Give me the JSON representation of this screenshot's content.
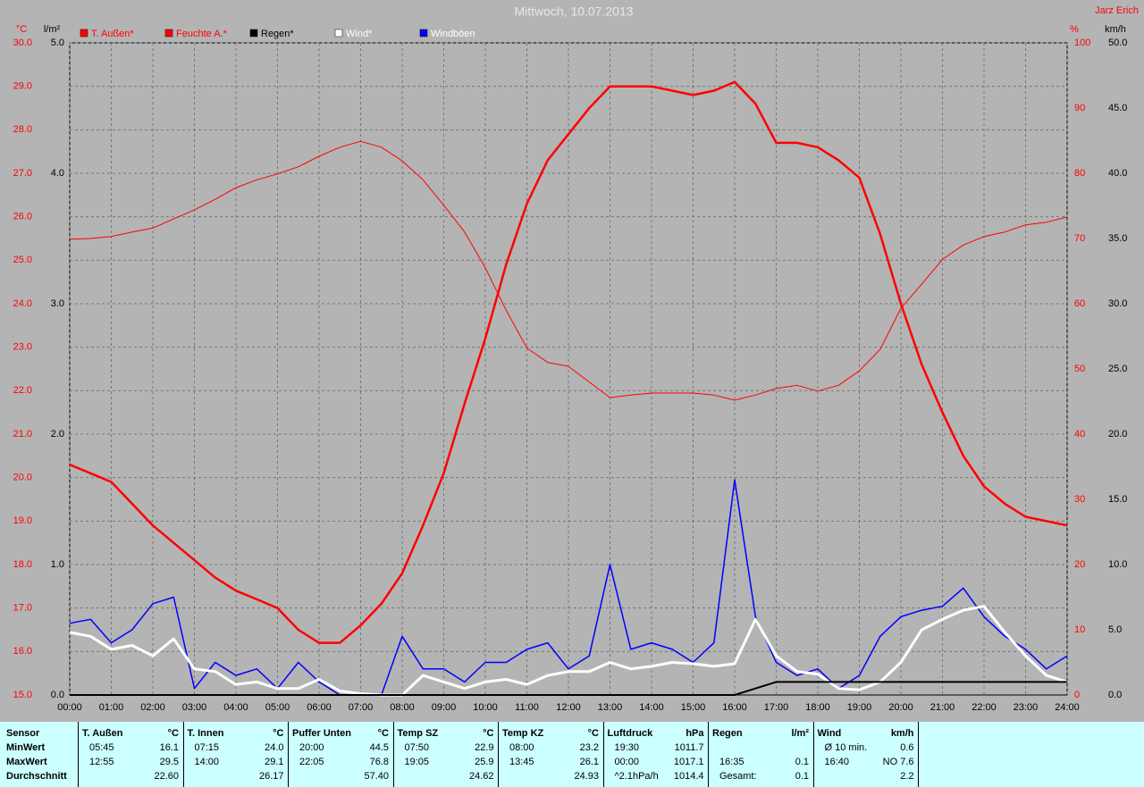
{
  "chart_data": {
    "type": "line",
    "title": "Mittwoch, 10.07.2013",
    "author": "Jarz Erich",
    "y_label": "°C",
    "y2_label": "l/m²",
    "y3_label": "%",
    "y4_label": "km/h",
    "x": [
      0,
      0.5,
      1,
      1.5,
      2,
      2.5,
      3,
      3.5,
      4,
      4.5,
      5,
      5.5,
      6,
      6.5,
      7,
      7.5,
      8,
      8.5,
      9,
      9.5,
      10,
      10.5,
      11,
      11.5,
      12,
      12.5,
      13,
      13.5,
      14,
      14.5,
      15,
      15.5,
      16,
      16.5,
      17,
      17.5,
      18,
      18.5,
      19,
      19.5,
      20,
      20.5,
      21,
      21.5,
      22,
      22.5,
      23,
      23.5,
      24
    ],
    "xlim": [
      0,
      24
    ],
    "xticks": [
      {
        "value": 0,
        "label": "00:00"
      },
      {
        "value": 1,
        "label": "01:00"
      },
      {
        "value": 2,
        "label": "02:00"
      },
      {
        "value": 3,
        "label": "03:00"
      },
      {
        "value": 4,
        "label": "04:00"
      },
      {
        "value": 5,
        "label": "05:00"
      },
      {
        "value": 6,
        "label": "06:00"
      },
      {
        "value": 7,
        "label": "07:00"
      },
      {
        "value": 8,
        "label": "08:00"
      },
      {
        "value": 9,
        "label": "09:00"
      },
      {
        "value": 10,
        "label": "10:00"
      },
      {
        "value": 11,
        "label": "11:00"
      },
      {
        "value": 12,
        "label": "12:00"
      },
      {
        "value": 13,
        "label": "13:00"
      },
      {
        "value": 14,
        "label": "14:00"
      },
      {
        "value": 15,
        "label": "15:00"
      },
      {
        "value": 16,
        "label": "16:00"
      },
      {
        "value": 17,
        "label": "17:00"
      },
      {
        "value": 18,
        "label": "18:00"
      },
      {
        "value": 19,
        "label": "19:00"
      },
      {
        "value": 20,
        "label": "20:00"
      },
      {
        "value": 21,
        "label": "21:00"
      },
      {
        "value": 22,
        "label": "22:00"
      },
      {
        "value": 23,
        "label": "23:00"
      },
      {
        "value": 24,
        "label": "24:00"
      }
    ],
    "ylim": [
      15,
      30
    ],
    "yticks": [
      {
        "value": 15,
        "label": "15.0"
      },
      {
        "value": 16,
        "label": "16.0"
      },
      {
        "value": 17,
        "label": "17.0"
      },
      {
        "value": 18,
        "label": "18.0"
      },
      {
        "value": 19,
        "label": "19.0"
      },
      {
        "value": 20,
        "label": "20.0"
      },
      {
        "value": 21,
        "label": "21.0"
      },
      {
        "value": 22,
        "label": "22.0"
      },
      {
        "value": 23,
        "label": "23.0"
      },
      {
        "value": 24,
        "label": "24.0"
      },
      {
        "value": 25,
        "label": "25.0"
      },
      {
        "value": 26,
        "label": "26.0"
      },
      {
        "value": 27,
        "label": "27.0"
      },
      {
        "value": 28,
        "label": "28.0"
      },
      {
        "value": 29,
        "label": "29.0"
      },
      {
        "value": 30,
        "label": "30.0"
      }
    ],
    "y2lim": [
      0,
      5
    ],
    "y2ticks": [
      {
        "value": 0,
        "label": "0.0"
      },
      {
        "value": 1,
        "label": "1.0"
      },
      {
        "value": 2,
        "label": "2.0"
      },
      {
        "value": 3,
        "label": "3.0"
      },
      {
        "value": 4,
        "label": "4.0"
      },
      {
        "value": 5,
        "label": "5.0"
      }
    ],
    "y3lim": [
      0,
      100
    ],
    "y3ticks": [
      0,
      10,
      20,
      30,
      40,
      50,
      60,
      70,
      80,
      90,
      100
    ],
    "y4lim": [
      0,
      50
    ],
    "y4ticks": [
      {
        "value": 0,
        "label": "0.0"
      },
      {
        "value": 5,
        "label": "5.0"
      },
      {
        "value": 10,
        "label": "10.0"
      },
      {
        "value": 15,
        "label": "15.0"
      },
      {
        "value": 20,
        "label": "20.0"
      },
      {
        "value": 25,
        "label": "25.0"
      },
      {
        "value": 30,
        "label": "30.0"
      },
      {
        "value": 35,
        "label": "35.0"
      },
      {
        "value": 40,
        "label": "40.0"
      },
      {
        "value": 45,
        "label": "45.0"
      },
      {
        "value": 50,
        "label": "50.0"
      }
    ],
    "grid": true,
    "series": [
      {
        "name": "T. Außen*",
        "color": "#ff0000",
        "label_color": "#ff0000",
        "width": 2.5,
        "axis": "y",
        "values": [
          20.3,
          20.1,
          19.9,
          19.4,
          18.9,
          18.5,
          18.1,
          17.7,
          17.4,
          17.2,
          17.0,
          16.5,
          16.2,
          16.2,
          16.6,
          17.1,
          17.8,
          18.9,
          20.1,
          21.7,
          23.2,
          24.9,
          26.3,
          27.3,
          27.9,
          28.5,
          29.0,
          29.0,
          29.0,
          28.9,
          28.8,
          28.9,
          29.1,
          28.6,
          27.7,
          27.7,
          27.6,
          27.3,
          26.9,
          25.6,
          24.0,
          22.6,
          21.5,
          20.5,
          19.8,
          19.4,
          19.1,
          19.0,
          18.9
        ]
      },
      {
        "name": "Feuchte A.*",
        "color": "#ff0000",
        "label_color": "#ff0000",
        "width": 1,
        "axis": "y3",
        "values": [
          69.9,
          70.0,
          70.3,
          71.0,
          71.6,
          73.0,
          74.4,
          76.0,
          77.8,
          79.0,
          79.9,
          81.0,
          82.6,
          84.0,
          84.9,
          84.0,
          81.9,
          79.0,
          75.1,
          71.0,
          65.5,
          59.0,
          53.2,
          51.0,
          50.4,
          48.0,
          45.6,
          46.0,
          46.3,
          46.3,
          46.3,
          46.0,
          45.2,
          46.0,
          47.0,
          47.5,
          46.6,
          47.5,
          49.7,
          53.0,
          59.3,
          63.0,
          66.8,
          69.0,
          70.3,
          71.0,
          72.1,
          72.5,
          73.3
        ]
      },
      {
        "name": "Regen*",
        "color": "#000000",
        "label_color": "#000000",
        "width": 2,
        "axis": "y2",
        "values": [
          0,
          0,
          0,
          0,
          0,
          0,
          0,
          0,
          0,
          0,
          0,
          0,
          0,
          0,
          0,
          0,
          0,
          0,
          0,
          0,
          0,
          0,
          0,
          0,
          0,
          0,
          0,
          0,
          0,
          0,
          0,
          0,
          0,
          0.05,
          0.1,
          0.1,
          0.1,
          0.1,
          0.1,
          0.1,
          0.1,
          0.1,
          0.1,
          0.1,
          0.1,
          0.1,
          0.1,
          0.1,
          0.1
        ]
      },
      {
        "name": "Windböen",
        "color": "#0000ff",
        "label_color": "#ffffff",
        "width": 1.5,
        "axis": "y4",
        "values": [
          5.5,
          5.8,
          4.0,
          5.0,
          7.0,
          7.5,
          0.5,
          2.5,
          1.5,
          2.0,
          0.5,
          2.5,
          1.0,
          0.0,
          0.0,
          0.0,
          4.5,
          2.0,
          2.0,
          1.0,
          2.5,
          2.5,
          3.5,
          4.0,
          2.0,
          3.0,
          10.0,
          3.5,
          4.0,
          3.5,
          2.5,
          4.0,
          16.5,
          6.0,
          2.5,
          1.5,
          2.0,
          0.5,
          1.5,
          4.5,
          6.0,
          6.5,
          6.8,
          8.2,
          6.0,
          4.5,
          3.5,
          2.0,
          3.0
        ]
      },
      {
        "name": "Wind*",
        "color": "#ffffff",
        "label_color": "#ffffff",
        "width": 3,
        "axis": "y4",
        "values": [
          4.8,
          4.5,
          3.5,
          3.8,
          3.0,
          4.3,
          2.0,
          1.8,
          0.8,
          1.0,
          0.5,
          0.5,
          1.2,
          0.3,
          0.1,
          0.0,
          0.0,
          1.5,
          1.0,
          0.5,
          1.0,
          1.2,
          0.8,
          1.5,
          1.8,
          1.8,
          2.5,
          2.0,
          2.2,
          2.5,
          2.4,
          2.2,
          2.4,
          5.8,
          3.0,
          1.8,
          1.6,
          0.5,
          0.4,
          1.0,
          2.5,
          5.0,
          5.8,
          6.5,
          6.8,
          4.8,
          3.0,
          1.5,
          1.0
        ]
      }
    ],
    "legend_order": [
      0,
      1,
      2,
      4,
      3
    ]
  },
  "table": {
    "row_labels": [
      "Sensor",
      "MinWert",
      "MaxWert",
      "Durchschnitt"
    ],
    "groups": [
      {
        "name": "T. Außen",
        "unit": "°C",
        "rows": [
          [
            "05:45",
            "16.1"
          ],
          [
            "12:55",
            "29.5"
          ],
          [
            null,
            "22.60"
          ]
        ]
      },
      {
        "name": "T. Innen",
        "unit": "°C",
        "rows": [
          [
            "07:15",
            "24.0"
          ],
          [
            "14:00",
            "29.1"
          ],
          [
            null,
            "26.17"
          ]
        ]
      },
      {
        "name": "Puffer Unten",
        "unit": "°C",
        "rows": [
          [
            "20:00",
            "44.5"
          ],
          [
            "22:05",
            "76.8"
          ],
          [
            null,
            "57.40"
          ]
        ]
      },
      {
        "name": "Temp SZ",
        "unit": "°C",
        "rows": [
          [
            "07:50",
            "22.9"
          ],
          [
            "19:05",
            "25.9"
          ],
          [
            null,
            "24.62"
          ]
        ]
      },
      {
        "name": "Temp KZ",
        "unit": "°C",
        "rows": [
          [
            "08:00",
            "23.2"
          ],
          [
            "13:45",
            "26.1"
          ],
          [
            null,
            "24.93"
          ]
        ]
      },
      {
        "name": "Luftdruck",
        "unit": "hPa",
        "rows": [
          [
            "19:30",
            "1011.7"
          ],
          [
            "00:00",
            "1017.1"
          ],
          [
            "^2.1hPa/h",
            "1014.4"
          ]
        ]
      },
      {
        "name": "Regen",
        "unit": "l/m²",
        "rows": [
          [
            null,
            null
          ],
          [
            "16:35",
            "0.1"
          ],
          [
            "Gesamt:",
            "0.1"
          ]
        ]
      },
      {
        "name": "Wind",
        "unit": "km/h",
        "rows": [
          [
            "Ø 10 min.",
            "0.6"
          ],
          [
            "16:40",
            "NO 7.6"
          ],
          [
            null,
            "2.2"
          ]
        ]
      }
    ]
  }
}
